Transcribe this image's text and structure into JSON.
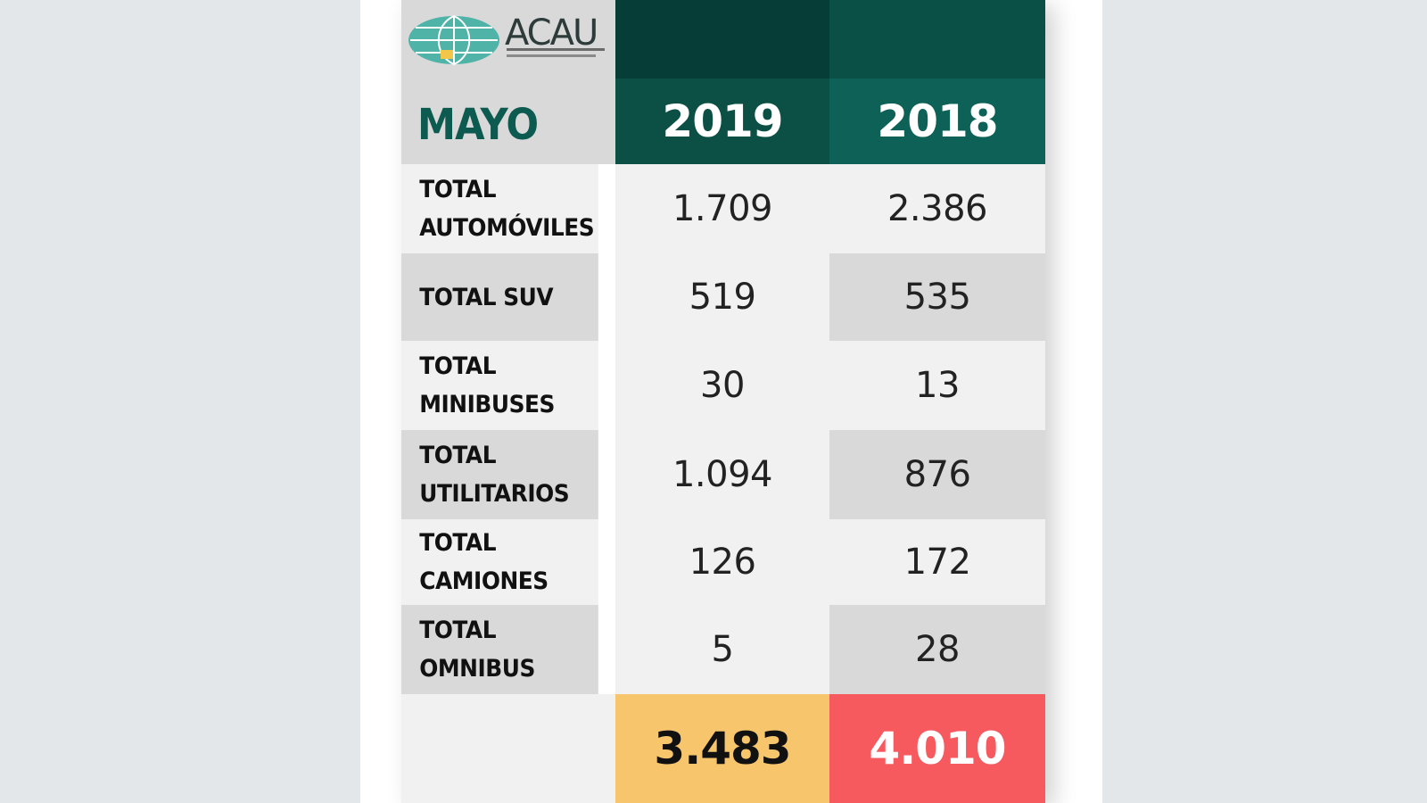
{
  "logo": {
    "name": "ACAU"
  },
  "colors": {
    "header_2019_top": "#063d36",
    "header_2019_bottom": "#0b4f45",
    "header_2018_top": "#0a5047",
    "header_2018_bottom": "#0d6157",
    "row_light": "#f1f1f1",
    "row_dark": "#d9d9d9",
    "total_2019": "#f7c56c",
    "total_2018": "#f65a5e",
    "month_text": "#0c5a50"
  },
  "chart_data": {
    "type": "table",
    "title": "MAYO",
    "columns": [
      "2019",
      "2018"
    ],
    "rows": [
      {
        "label": "TOTAL\nAUTOMÓVILES",
        "values": [
          "1.709",
          "2.386"
        ]
      },
      {
        "label": "TOTAL SUV",
        "values": [
          "519",
          "535"
        ]
      },
      {
        "label": "TOTAL\nMINIBUSES",
        "values": [
          "30",
          "13"
        ]
      },
      {
        "label": "TOTAL\nUTILITARIOS",
        "values": [
          "1.094",
          "876"
        ]
      },
      {
        "label": "TOTAL\nCAMIONES",
        "values": [
          "126",
          "172"
        ]
      },
      {
        "label": "TOTAL\nOMNIBUS",
        "values": [
          "5",
          "28"
        ]
      }
    ],
    "totals": [
      "3.483",
      "4.010"
    ]
  }
}
